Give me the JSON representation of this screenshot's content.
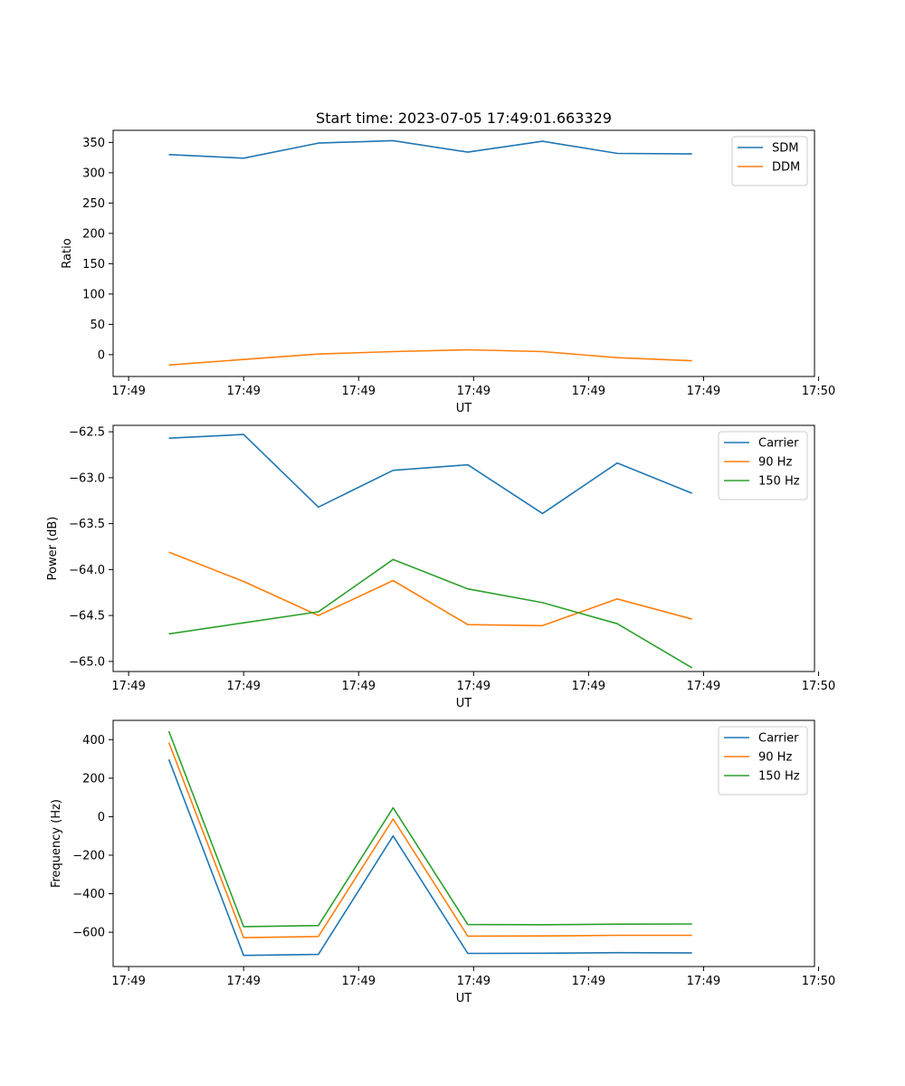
{
  "chart_data": [
    {
      "type": "line",
      "title": "Start time: 2023-07-05 17:49:01.663329",
      "xlabel": "UT",
      "ylabel": "Ratio",
      "x_tick_labels": [
        "17:49",
        "17:49",
        "17:49",
        "17:49",
        "17:49",
        "17:49",
        "17:50"
      ],
      "xlim": [
        -0.135,
        5.965
      ],
      "x": [
        0.35,
        1.0,
        1.65,
        2.3,
        2.95,
        3.6,
        4.25,
        4.9
      ],
      "ylim": [
        -36,
        370
      ],
      "y_ticks": [
        0,
        50,
        100,
        150,
        200,
        250,
        300,
        350
      ],
      "legend": "top-right",
      "series": [
        {
          "name": "SDM",
          "color": "#1f77b4",
          "values": [
            330,
            324,
            349,
            353,
            334,
            352,
            332,
            331
          ]
        },
        {
          "name": "DDM",
          "color": "#ff7f0e",
          "values": [
            -17,
            -8,
            1,
            5,
            8,
            5,
            -5,
            -10
          ]
        }
      ]
    },
    {
      "type": "line",
      "title": "",
      "xlabel": "UT",
      "ylabel": "Power (dB)",
      "x_tick_labels": [
        "17:49",
        "17:49",
        "17:49",
        "17:49",
        "17:49",
        "17:49",
        "17:50"
      ],
      "xlim": [
        -0.135,
        5.965
      ],
      "x": [
        0.35,
        1.0,
        1.65,
        2.3,
        2.95,
        3.6,
        4.25,
        4.9
      ],
      "ylim": [
        -65.11,
        -62.43
      ],
      "y_ticks": [
        -62.5,
        -63.0,
        -63.5,
        -64.0,
        -64.5,
        -65.0
      ],
      "y_tick_labels": [
        "−62.5",
        "−63.0",
        "−63.5",
        "−64.0",
        "−64.5",
        "−65.0"
      ],
      "legend": "top-right",
      "series": [
        {
          "name": "Carrier",
          "color": "#1f77b4",
          "values": [
            -62.57,
            -62.53,
            -63.32,
            -62.92,
            -62.86,
            -63.39,
            -62.84,
            -63.17
          ]
        },
        {
          "name": "90 Hz",
          "color": "#ff7f0e",
          "values": [
            -63.81,
            -64.13,
            -64.5,
            -64.12,
            -64.6,
            -64.61,
            -64.32,
            -64.54
          ]
        },
        {
          "name": "150 Hz",
          "color": "#2ca02c",
          "values": [
            -64.7,
            -64.58,
            -64.46,
            -63.89,
            -64.21,
            -64.36,
            -64.59,
            -65.07
          ]
        }
      ]
    },
    {
      "type": "line",
      "title": "",
      "xlabel": "UT",
      "ylabel": "Frequency (Hz)",
      "x_tick_labels": [
        "17:49",
        "17:49",
        "17:49",
        "17:49",
        "17:49",
        "17:49",
        "17:50"
      ],
      "xlim": [
        -0.135,
        5.965
      ],
      "x": [
        0.35,
        1.0,
        1.65,
        2.3,
        2.95,
        3.6,
        4.25,
        4.9
      ],
      "ylim": [
        -778,
        500
      ],
      "y_ticks": [
        400,
        200,
        0,
        -200,
        -400,
        -600
      ],
      "y_tick_labels": [
        "400",
        "200",
        "0",
        "−200",
        "−400",
        "−600"
      ],
      "legend": "top-right",
      "series": [
        {
          "name": "Carrier",
          "color": "#1f77b4",
          "values": [
            297,
            -720,
            -715,
            -100,
            -710,
            -709,
            -706,
            -707
          ]
        },
        {
          "name": "90 Hz",
          "color": "#ff7f0e",
          "values": [
            385,
            -628,
            -622,
            -12,
            -620,
            -619,
            -616,
            -616
          ]
        },
        {
          "name": "150 Hz",
          "color": "#2ca02c",
          "values": [
            443,
            -571,
            -565,
            46,
            -560,
            -561,
            -558,
            -557
          ]
        }
      ]
    }
  ]
}
